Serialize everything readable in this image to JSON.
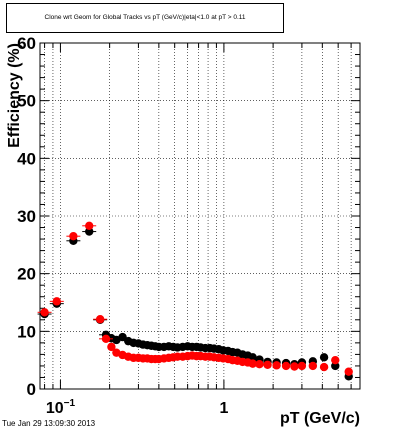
{
  "chart_data": {
    "type": "scatter",
    "title": "Clone wrt Geom for Global Tracks vs pT (GeV/c)|eta|<1.0 at pT > 0.11",
    "xlabel": "pT (GeV/c)",
    "ylabel": "Efficiency (%)",
    "xscale": "log",
    "xlim": [
      0.075,
      6.8
    ],
    "ylim": [
      0,
      60
    ],
    "yticks": [
      0,
      10,
      20,
      30,
      40,
      50,
      60
    ],
    "xtick_labels": [
      "10^-1",
      "1"
    ],
    "grid": true,
    "legend": "none",
    "series": [
      {
        "color": "#000000",
        "marker": "circle",
        "x": [
          0.08,
          0.095,
          0.12,
          0.15,
          0.175,
          0.19,
          0.205,
          0.22,
          0.24,
          0.26,
          0.28,
          0.3,
          0.32,
          0.34,
          0.36,
          0.38,
          0.4,
          0.43,
          0.46,
          0.49,
          0.52,
          0.56,
          0.6,
          0.64,
          0.68,
          0.72,
          0.77,
          0.82,
          0.87,
          0.93,
          0.99,
          1.06,
          1.13,
          1.21,
          1.3,
          1.4,
          1.5,
          1.65,
          1.85,
          2.1,
          2.4,
          2.7,
          3.0,
          3.5,
          4.1,
          4.8,
          5.8
        ],
        "y": [
          13.0,
          14.8,
          25.7,
          27.3,
          12.0,
          9.4,
          8.8,
          8.5,
          9.0,
          8.3,
          8.0,
          7.9,
          7.7,
          7.6,
          7.5,
          7.4,
          7.3,
          7.3,
          7.4,
          7.3,
          7.2,
          7.3,
          7.4,
          7.3,
          7.3,
          7.2,
          7.1,
          7.1,
          7.0,
          6.9,
          6.7,
          6.6,
          6.4,
          6.3,
          6.0,
          5.8,
          5.5,
          5.1,
          4.7,
          4.6,
          4.5,
          4.3,
          4.6,
          4.8,
          5.5,
          4.0,
          2.2
        ]
      },
      {
        "color": "#ff0000",
        "marker": "circle",
        "x": [
          0.08,
          0.095,
          0.12,
          0.15,
          0.175,
          0.19,
          0.205,
          0.22,
          0.24,
          0.26,
          0.28,
          0.3,
          0.32,
          0.34,
          0.36,
          0.38,
          0.4,
          0.43,
          0.46,
          0.49,
          0.52,
          0.56,
          0.6,
          0.64,
          0.68,
          0.72,
          0.77,
          0.82,
          0.87,
          0.93,
          0.99,
          1.06,
          1.13,
          1.21,
          1.3,
          1.4,
          1.5,
          1.65,
          1.85,
          2.1,
          2.4,
          2.7,
          3.0,
          3.5,
          4.1,
          4.8,
          5.8
        ],
        "y": [
          13.3,
          15.2,
          26.5,
          28.3,
          12.1,
          8.7,
          7.3,
          6.3,
          5.9,
          5.6,
          5.4,
          5.4,
          5.3,
          5.3,
          5.2,
          5.2,
          5.2,
          5.3,
          5.4,
          5.5,
          5.6,
          5.6,
          5.7,
          5.8,
          5.7,
          5.7,
          5.6,
          5.6,
          5.5,
          5.4,
          5.3,
          5.2,
          5.0,
          4.9,
          4.7,
          4.6,
          4.4,
          4.3,
          4.2,
          4.1,
          4.0,
          3.9,
          4.0,
          4.0,
          3.8,
          5.0,
          3.0
        ]
      }
    ]
  },
  "footer": {
    "timestamp": "Tue Jan 29 13:09:30 2013"
  }
}
